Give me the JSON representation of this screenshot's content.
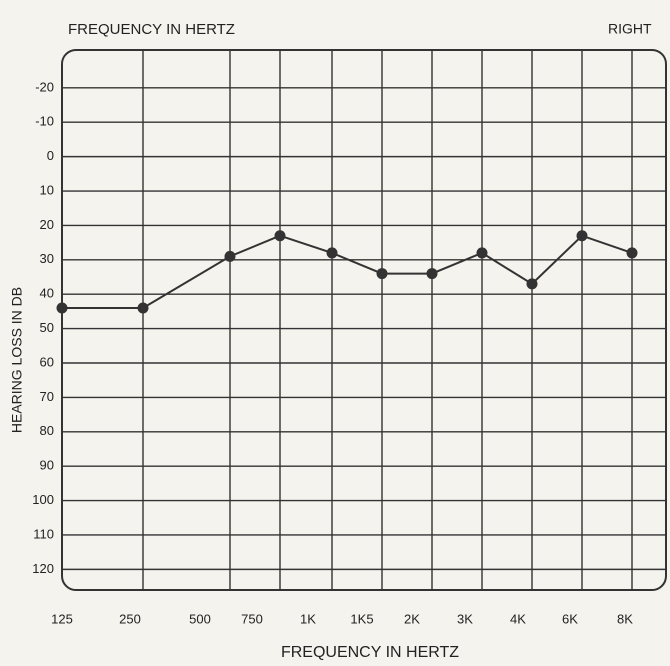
{
  "chart_data": {
    "type": "line",
    "title": "FREQUENCY IN HERTZ",
    "side_label": "RIGHT",
    "x_label": "FREQUENCY IN HERTZ",
    "y_label": "HEARING LOSS IN DB",
    "categories": [
      "125",
      "250",
      "500",
      "750",
      "1K",
      "1K5",
      "2K",
      "3K",
      "4K",
      "6K",
      "8K"
    ],
    "series": [
      {
        "name": "RIGHT",
        "color": "#333333",
        "values": [
          44,
          44,
          29,
          23,
          28,
          34,
          34,
          28,
          37,
          23,
          28
        ]
      }
    ],
    "ylim": [
      -31,
      126
    ],
    "y_inverted": true,
    "yticks": [
      -20,
      -10,
      0,
      10,
      20,
      30,
      40,
      50,
      60,
      70,
      80,
      90,
      100,
      110,
      120
    ],
    "grid": true
  }
}
